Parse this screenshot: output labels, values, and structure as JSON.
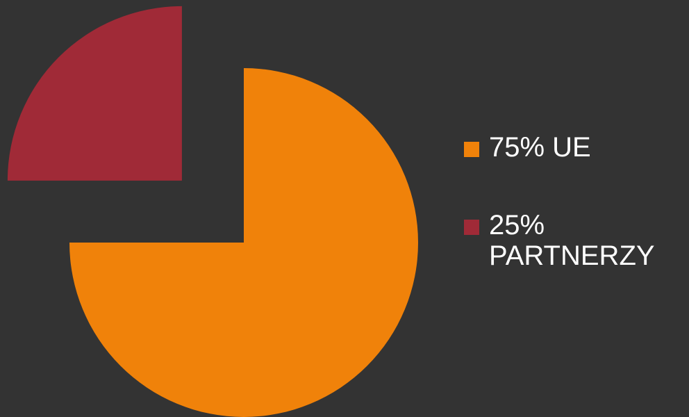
{
  "chart_data": {
    "type": "pie",
    "title": "",
    "exploded": true,
    "start_angle": "12 o'clock",
    "direction": "clockwise",
    "slices": [
      {
        "label": "75% UE",
        "value": 75,
        "color": "#F0820A"
      },
      {
        "label": "25%\nPARTNERZY",
        "value": 25,
        "color": "#A02A37"
      }
    ],
    "legend_position": "right"
  },
  "background_color": "#333333",
  "text_color": "#FFFFFF"
}
